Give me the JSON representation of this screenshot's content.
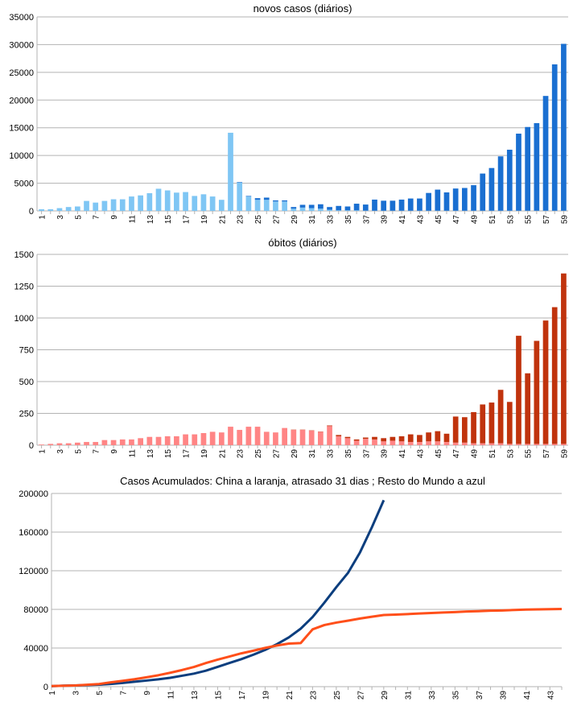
{
  "chart_data": [
    {
      "type": "bar",
      "title": "novos casos (diários)",
      "categories": [
        1,
        null,
        3,
        null,
        5,
        null,
        7,
        null,
        9,
        null,
        11,
        null,
        13,
        null,
        15,
        null,
        17,
        null,
        19,
        null,
        21,
        null,
        23,
        null,
        25,
        null,
        27,
        null,
        29,
        null,
        31,
        null,
        33,
        null,
        35,
        null,
        37,
        null,
        39,
        null,
        41,
        null,
        43,
        null,
        45,
        null,
        47,
        null,
        49,
        null,
        51,
        null,
        53,
        null,
        55,
        null,
        57,
        null,
        59
      ],
      "stacked": true,
      "series": [
        {
          "color": "#7fc6f4",
          "values": [
            300,
            300,
            500,
            700,
            800,
            1800,
            1500,
            1800,
            2100,
            2100,
            2600,
            2800,
            3200,
            4000,
            3700,
            3300,
            3400,
            2700,
            3000,
            2600,
            2000,
            14100,
            5100,
            2600,
            2000,
            2000,
            1700,
            1700,
            400,
            600,
            500,
            400,
            200,
            100,
            100,
            100,
            50,
            40,
            40,
            40,
            40,
            40,
            40,
            40,
            40,
            40,
            40,
            40,
            40,
            40,
            40,
            40,
            40,
            40,
            40,
            40,
            40,
            40,
            40
          ]
        },
        {
          "color": "#1a6fd1",
          "values": [
            0,
            0,
            0,
            0,
            0,
            0,
            0,
            0,
            0,
            0,
            0,
            0,
            0,
            0,
            0,
            0,
            0,
            0,
            0,
            0,
            0,
            0,
            100,
            100,
            300,
            400,
            200,
            200,
            300,
            500,
            600,
            800,
            500,
            800,
            700,
            1200,
            1100,
            2000,
            1800,
            1800,
            2000,
            2200,
            2200,
            3200,
            3800,
            3300,
            4000,
            4100,
            4600,
            6700,
            7700,
            9800,
            11000,
            13900,
            15100,
            15800,
            20700,
            26400,
            30100
          ]
        }
      ],
      "ylim": [
        0,
        35000
      ],
      "yticks": [
        0,
        5000,
        10000,
        15000,
        20000,
        25000,
        30000,
        35000
      ],
      "grid": true
    },
    {
      "type": "bar",
      "title": "óbitos (diários)",
      "categories": [
        1,
        null,
        3,
        null,
        5,
        null,
        7,
        null,
        9,
        null,
        11,
        null,
        13,
        null,
        15,
        null,
        17,
        null,
        19,
        null,
        21,
        null,
        23,
        null,
        25,
        null,
        27,
        null,
        29,
        null,
        31,
        null,
        33,
        null,
        35,
        null,
        37,
        null,
        39,
        null,
        41,
        null,
        43,
        null,
        45,
        null,
        47,
        null,
        49,
        null,
        51,
        null,
        53,
        null,
        55,
        null,
        57,
        null,
        59
      ],
      "stacked": true,
      "series": [
        {
          "color": "#ff8585",
          "values": [
            5,
            10,
            15,
            15,
            20,
            25,
            25,
            40,
            40,
            45,
            45,
            55,
            65,
            65,
            70,
            70,
            85,
            85,
            95,
            105,
            100,
            145,
            120,
            145,
            145,
            105,
            100,
            135,
            120,
            120,
            115,
            105,
            150,
            70,
            55,
            35,
            50,
            45,
            30,
            35,
            30,
            25,
            25,
            30,
            30,
            25,
            20,
            20,
            15,
            15,
            15,
            15,
            10,
            10,
            10,
            10,
            10,
            10,
            10
          ]
        },
        {
          "color": "#c0330d",
          "values": [
            0,
            0,
            0,
            0,
            0,
            0,
            0,
            0,
            0,
            0,
            0,
            0,
            0,
            0,
            0,
            0,
            0,
            0,
            0,
            0,
            0,
            0,
            0,
            0,
            0,
            0,
            0,
            0,
            2,
            2,
            2,
            2,
            5,
            10,
            10,
            10,
            10,
            20,
            25,
            30,
            40,
            60,
            55,
            70,
            80,
            65,
            205,
            200,
            245,
            305,
            320,
            420,
            330,
            850,
            555,
            810,
            970,
            1075,
            1340
          ]
        }
      ],
      "ylim": [
        0,
        1500
      ],
      "yticks": [
        0,
        250,
        500,
        750,
        1000,
        1250,
        1500
      ],
      "grid": true
    },
    {
      "type": "line",
      "title": "Casos Acumulados: China a laranja, atrasado 31 dias ; Resto do Mundo a azul",
      "categories": [
        1,
        null,
        3,
        null,
        5,
        null,
        7,
        null,
        9,
        null,
        11,
        null,
        13,
        null,
        15,
        null,
        17,
        null,
        19,
        null,
        21,
        null,
        23,
        null,
        25,
        null,
        27,
        null,
        29,
        null,
        31,
        null,
        33,
        null,
        35,
        null,
        37,
        null,
        39,
        null,
        41,
        null,
        43,
        null
      ],
      "series": [
        {
          "color": "#0c3e7e",
          "values": [
            500,
            1000,
            1300,
            1700,
            2100,
            2800,
            3800,
            5100,
            6300,
            7600,
            9200,
            11300,
            13500,
            16500,
            20500,
            24500,
            28500,
            33000,
            38000,
            44000,
            51000,
            60000,
            72000,
            87000,
            103000,
            118000,
            139000,
            165000,
            193000,
            null,
            null,
            null,
            null,
            null,
            null,
            null,
            null,
            null,
            null,
            null,
            null,
            null,
            null,
            null
          ]
        },
        {
          "color": "#ff4f1a",
          "values": [
            600,
            900,
            1300,
            2000,
            2700,
            4500,
            6000,
            7700,
            9700,
            11800,
            14400,
            17200,
            20400,
            24400,
            28000,
            31200,
            34500,
            37200,
            40100,
            42600,
            44600,
            45100,
            59300,
            63800,
            66300,
            68300,
            70500,
            72400,
            74200,
            74600,
            75100,
            75700,
            76300,
            76800,
            77200,
            77800,
            78100,
            78600,
            78900,
            79400,
            79800,
            80000,
            80200,
            80400
          ]
        }
      ],
      "ylim": [
        0,
        200000
      ],
      "yticks": [
        0,
        40000,
        80000,
        120000,
        160000,
        200000
      ],
      "grid": true
    }
  ]
}
